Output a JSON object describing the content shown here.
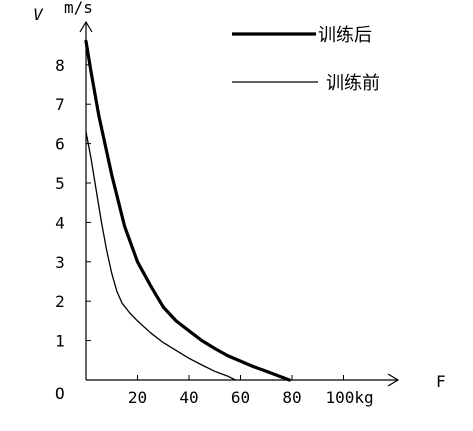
{
  "chart_data": {
    "type": "line",
    "title": "",
    "xlabel": "F",
    "ylabel": "V",
    "yunit": "m/s",
    "origin_label": "O",
    "xlim": [
      0,
      120
    ],
    "ylim": [
      0,
      9
    ],
    "x_ticks": [
      20,
      40,
      60,
      80
    ],
    "x_tick_labels": [
      "20",
      "40",
      "60",
      "80"
    ],
    "x_last_tick_value": 100,
    "x_last_tick_label": "100kg",
    "y_ticks": [
      1,
      2,
      3,
      4,
      5,
      6,
      7,
      8
    ],
    "y_tick_labels": [
      "1",
      "2",
      "3",
      "4",
      "5",
      "6",
      "7",
      "8"
    ],
    "grid": false,
    "legend_position": "top-right",
    "series": [
      {
        "name": "训练后",
        "style": "thick",
        "color": "#000000",
        "points": [
          [
            0,
            8.6
          ],
          [
            2,
            7.8
          ],
          [
            5,
            6.7
          ],
          [
            10,
            5.2
          ],
          [
            15,
            3.9
          ],
          [
            20,
            3.0
          ],
          [
            25,
            2.4
          ],
          [
            30,
            1.85
          ],
          [
            35,
            1.5
          ],
          [
            40,
            1.25
          ],
          [
            45,
            1.0
          ],
          [
            50,
            0.8
          ],
          [
            55,
            0.62
          ],
          [
            60,
            0.48
          ],
          [
            65,
            0.34
          ],
          [
            70,
            0.22
          ],
          [
            75,
            0.1
          ],
          [
            79,
            0.0
          ]
        ]
      },
      {
        "name": "训练前",
        "style": "thin",
        "color": "#000000",
        "points": [
          [
            0,
            6.3
          ],
          [
            2,
            5.6
          ],
          [
            4,
            4.8
          ],
          [
            6,
            4.0
          ],
          [
            8,
            3.3
          ],
          [
            10,
            2.7
          ],
          [
            12,
            2.25
          ],
          [
            14,
            1.95
          ],
          [
            17,
            1.7
          ],
          [
            20,
            1.5
          ],
          [
            25,
            1.2
          ],
          [
            30,
            0.95
          ],
          [
            35,
            0.75
          ],
          [
            40,
            0.55
          ],
          [
            45,
            0.38
          ],
          [
            50,
            0.22
          ],
          [
            55,
            0.1
          ],
          [
            58,
            0.0
          ]
        ]
      }
    ]
  }
}
